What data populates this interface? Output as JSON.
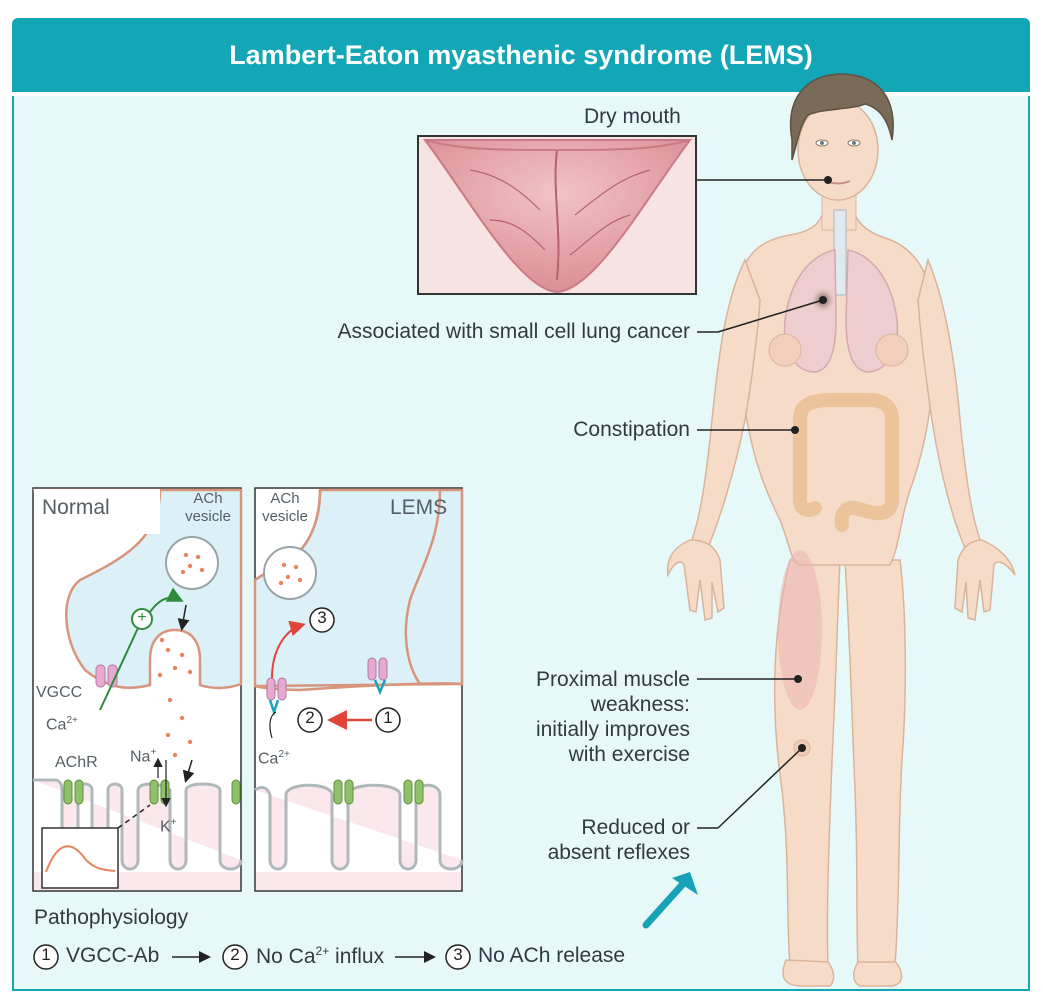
{
  "title": "Lambert-Eaton myasthenic syndrome (LEMS)",
  "labels": {
    "dry_mouth": "Dry mouth",
    "lung_cancer": "Associated with small cell lung cancer",
    "constipation": "Constipation",
    "weakness_1": "Proximal muscle",
    "weakness_2": "weakness:",
    "weakness_3": "initially improves",
    "weakness_4": "with exercise",
    "reflexes_1": "Reduced or",
    "reflexes_2": "absent reflexes"
  },
  "normal_panel": {
    "title": "Normal",
    "vesicle_1": "ACh",
    "vesicle_2": "vesicle",
    "vgcc": "VGCC",
    "ca": "Ca",
    "ca_sup": "2+",
    "achr": "AChR",
    "na": "Na",
    "na_sup": "+",
    "k": "K",
    "k_sup": "+",
    "plus": "+"
  },
  "lems_panel": {
    "title": "LEMS",
    "vesicle_1": "ACh",
    "vesicle_2": "vesicle",
    "ca": "Ca",
    "ca_sup": "2+",
    "n1": "1",
    "n2": "2",
    "n3": "3"
  },
  "pathophysiology": {
    "heading": "Pathophysiology",
    "step1_num": "1",
    "step1": "VGCC-Ab",
    "step2_num": "2",
    "step2_a": "No Ca",
    "step2_sup": "2+",
    "step2_b": " influx",
    "step3_num": "3",
    "step3": "No ACh release"
  },
  "colors": {
    "header": "#12a6b6",
    "panel_bg": "#e7f8f9",
    "skin": "#f6dcc8",
    "accent_red": "#e0453a",
    "accent_green": "#2e8b3e"
  },
  "icons": [
    "reflex-hammer-icon"
  ]
}
